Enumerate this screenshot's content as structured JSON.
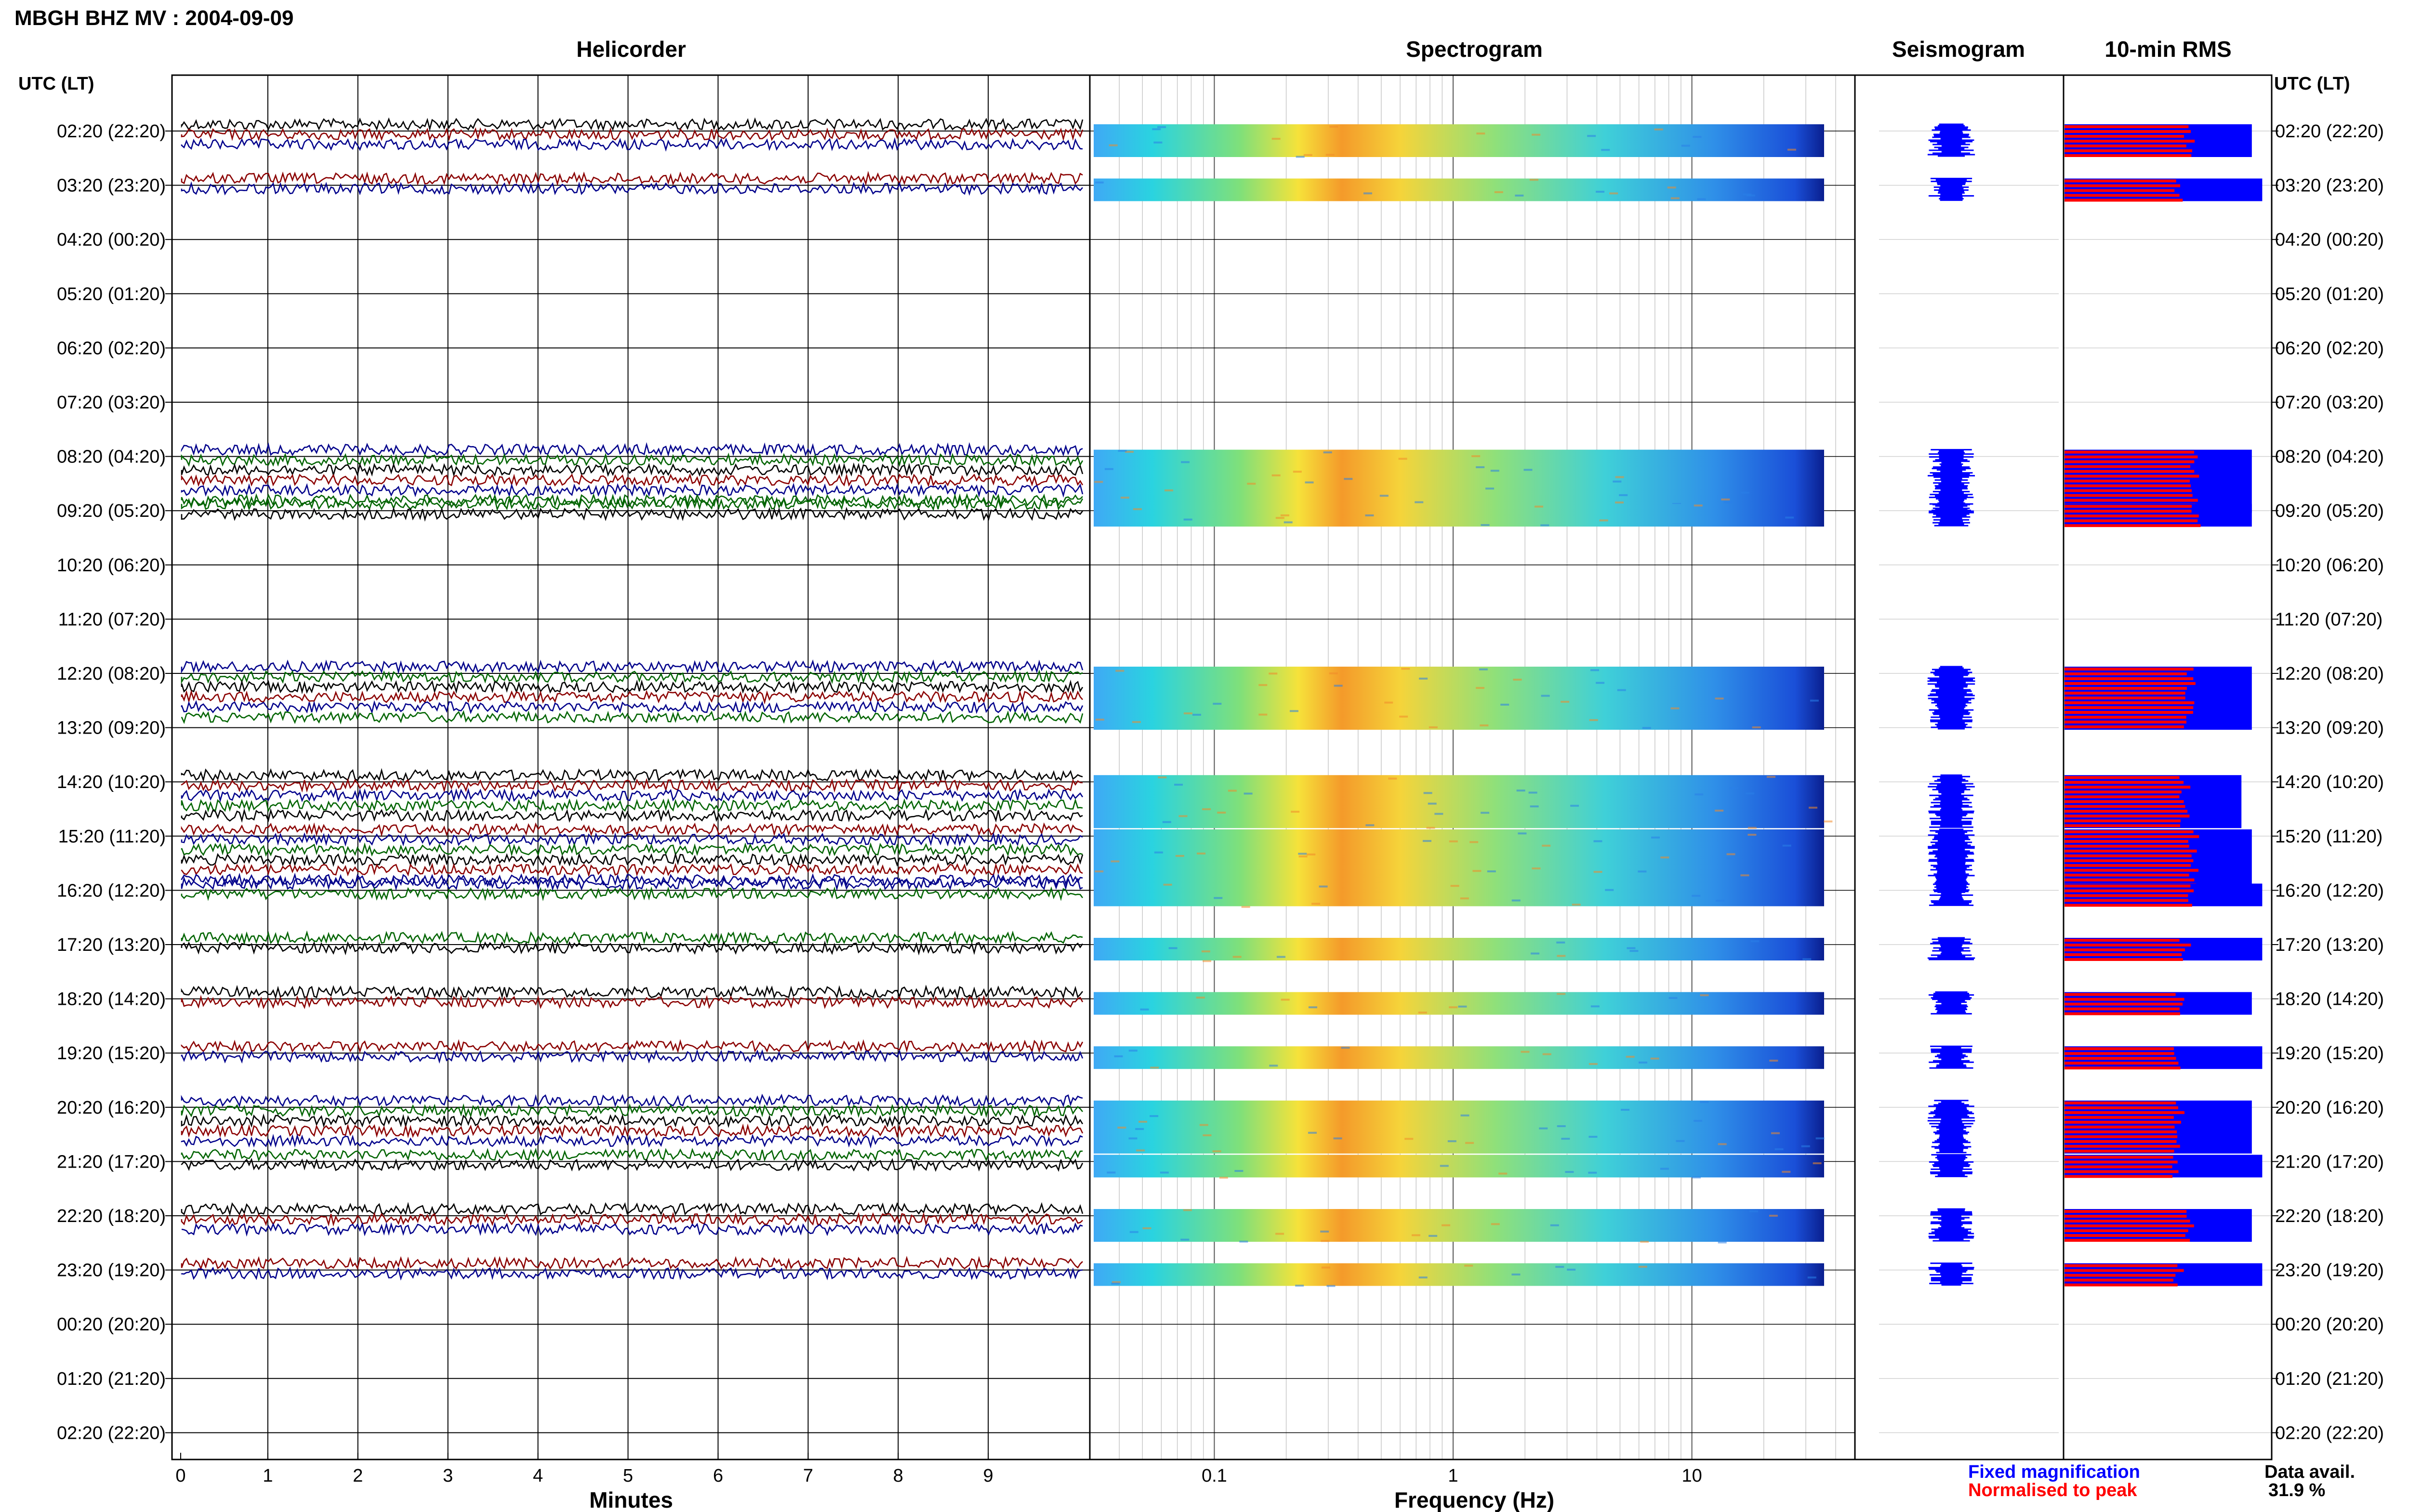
{
  "header": {
    "title": "MBGH BHZ MV : 2004-09-09"
  },
  "panels": {
    "helicorder": "Helicorder",
    "spectrogram": "Spectrogram",
    "seismogram": "Seismogram",
    "rms": "10-min RMS"
  },
  "axes": {
    "left_time_header": "UTC (LT)",
    "right_time_header": "UTC (LT)",
    "helicorder_xlabel": "Minutes",
    "spectrogram_xlabel": "Frequency (Hz)"
  },
  "legend": {
    "fixed": "Fixed magnification",
    "normalised": "Normalised to peak",
    "fixed_color": "#0000ff",
    "normalised_color": "#ff0000"
  },
  "data_availability": {
    "label": "Data avail.",
    "value": "31.9 %"
  },
  "colors": {
    "trace_black": "#000000",
    "trace_red": "#8b0000",
    "trace_blue": "#00008b",
    "trace_green": "#006400",
    "seismogram": "#0000ff",
    "rms_red": "#ff0000",
    "rms_blue": "#0000ff"
  },
  "chart_data": {
    "type": "heatmap",
    "time_labels": [
      "02:20 (22:20)",
      "03:20 (23:20)",
      "04:20 (00:20)",
      "05:20 (01:20)",
      "06:20 (02:20)",
      "07:20 (03:20)",
      "08:20 (04:20)",
      "09:20 (05:20)",
      "10:20 (06:20)",
      "11:20 (07:20)",
      "12:20 (08:20)",
      "13:20 (09:20)",
      "14:20 (10:20)",
      "15:20 (11:20)",
      "16:20 (12:20)",
      "17:20 (13:20)",
      "18:20 (14:20)",
      "19:20 (15:20)",
      "20:20 (16:20)",
      "21:20 (17:20)",
      "22:20 (18:20)",
      "23:20 (19:20)",
      "00:20 (20:20)",
      "01:20 (21:20)",
      "02:20 (22:20)"
    ],
    "helicorder_xticks": [
      0,
      1,
      2,
      3,
      4,
      5,
      6,
      7,
      8,
      9
    ],
    "helicorder_xlim": [
      0,
      10
    ],
    "spectrogram_xticks": [
      "0.1",
      "1",
      "10"
    ],
    "spectrogram_xlim": [
      0.025,
      40
    ],
    "spectrogram_scale": "log",
    "trace_colors_cycle": [
      "black",
      "red",
      "blue",
      "green"
    ],
    "active_segments": [
      {
        "hour": 0,
        "rows": [
          0,
          1,
          2
        ]
      },
      {
        "hour": 1,
        "rows": [
          0,
          1
        ]
      },
      {
        "hour": 6,
        "rows": [
          0,
          1,
          2,
          3,
          4,
          5
        ]
      },
      {
        "hour": 7,
        "rows": [
          0,
          1
        ]
      },
      {
        "hour": 10,
        "rows": [
          0,
          1,
          2,
          3,
          4,
          5
        ]
      },
      {
        "hour": 12,
        "rows": [
          0,
          1,
          2,
          3,
          4
        ]
      },
      {
        "hour": 13,
        "rows": [
          0,
          1,
          2,
          3,
          4,
          5
        ]
      },
      {
        "hour": 14,
        "rows": [
          0,
          1
        ]
      },
      {
        "hour": 15,
        "rows": [
          0,
          1
        ]
      },
      {
        "hour": 16,
        "rows": [
          0,
          1
        ]
      },
      {
        "hour": 17,
        "rows": [
          0,
          1
        ]
      },
      {
        "hour": 18,
        "rows": [
          0,
          1,
          2,
          3,
          4
        ]
      },
      {
        "hour": 19,
        "rows": [
          0,
          1
        ]
      },
      {
        "hour": 20,
        "rows": [
          0,
          1,
          2
        ]
      },
      {
        "hour": 21,
        "rows": [
          0,
          1
        ]
      }
    ],
    "rms_fixed_fraction": [
      0.9,
      0.95,
      0.9,
      0.9,
      0.9,
      0.85,
      0.9,
      0.95,
      0.95,
      0.9,
      0.95,
      0.9,
      0.95
    ],
    "rms_normalised_fraction": [
      0.6,
      0.55,
      0.62,
      0.63,
      0.6,
      0.58,
      0.62,
      0.6,
      0.58,
      0.55,
      0.55,
      0.55,
      0.53
    ]
  }
}
